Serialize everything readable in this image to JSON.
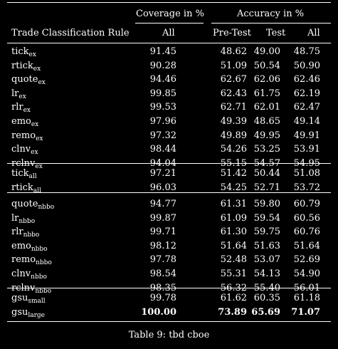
{
  "table": {
    "group_headers": {
      "coverage": "Coverage in %",
      "accuracy": "Accuracy in %"
    },
    "columns": {
      "rule": "Trade Classification Rule",
      "cov_all": "All",
      "pretest": "Pre-Test",
      "test": "Test",
      "acc_all": "All"
    },
    "groups": [
      [
        {
          "base": "tick",
          "sub": "ex",
          "cov": "91.45",
          "pre": "48.62",
          "test": "49.00",
          "all": "48.75"
        },
        {
          "base": "rtick",
          "sub": "ex",
          "cov": "90.28",
          "pre": "51.09",
          "test": "50.54",
          "all": "50.90"
        },
        {
          "base": "quote",
          "sub": "ex",
          "cov": "94.46",
          "pre": "62.67",
          "test": "62.06",
          "all": "62.46"
        },
        {
          "base": "lr",
          "sub": "ex",
          "cov": "99.85",
          "pre": "62.43",
          "test": "61.75",
          "all": "62.19"
        },
        {
          "base": "rlr",
          "sub": "ex",
          "cov": "99.53",
          "pre": "62.71",
          "test": "62.01",
          "all": "62.47"
        },
        {
          "base": "emo",
          "sub": "ex",
          "cov": "97.96",
          "pre": "49.39",
          "test": "48.65",
          "all": "49.14"
        },
        {
          "base": "remo",
          "sub": "ex",
          "cov": "97.32",
          "pre": "49.89",
          "test": "49.95",
          "all": "49.91"
        },
        {
          "base": "clnv",
          "sub": "ex",
          "cov": "98.44",
          "pre": "54.26",
          "test": "53.25",
          "all": "53.91"
        },
        {
          "base": "rclnv",
          "sub": "ex",
          "cov": "94.04",
          "pre": "55.15",
          "test": "54.57",
          "all": "54.95"
        }
      ],
      [
        {
          "base": "tick",
          "sub": "all",
          "cov": "97.21",
          "pre": "51.42",
          "test": "50.44",
          "all": "51.08"
        },
        {
          "base": "rtick",
          "sub": "all",
          "cov": "96.03",
          "pre": "54.25",
          "test": "52.71",
          "all": "53.72"
        }
      ],
      [
        {
          "base": "quote",
          "sub": "nbbo",
          "cov": "94.77",
          "pre": "61.31",
          "test": "59.80",
          "all": "60.79"
        },
        {
          "base": "lr",
          "sub": "nbbo",
          "cov": "99.87",
          "pre": "61.09",
          "test": "59.54",
          "all": "60.56"
        },
        {
          "base": "rlr",
          "sub": "nbbo",
          "cov": "99.71",
          "pre": "61.30",
          "test": "59.75",
          "all": "60.76"
        },
        {
          "base": "emo",
          "sub": "nbbo",
          "cov": "98.12",
          "pre": "51.64",
          "test": "51.63",
          "all": "51.64"
        },
        {
          "base": "remo",
          "sub": "nbbo",
          "cov": "97.78",
          "pre": "52.48",
          "test": "53.07",
          "all": "52.69"
        },
        {
          "base": "clnv",
          "sub": "nbbo",
          "cov": "98.54",
          "pre": "55.31",
          "test": "54.13",
          "all": "54.90"
        },
        {
          "base": "rclnv",
          "sub": "nbbo",
          "cov": "98.35",
          "pre": "56.32",
          "test": "55.40",
          "all": "56.01"
        }
      ],
      [
        {
          "base": "gsu",
          "sub": "small",
          "cov": "99.78",
          "pre": "61.62",
          "test": "60.35",
          "all": "61.18"
        },
        {
          "base": "gsu",
          "sub": "large",
          "cov": "100.00",
          "pre": "73.89",
          "test": "65.69",
          "all": "71.07",
          "bold": true
        }
      ]
    ]
  },
  "caption": "Table 9: tbd cboe"
}
